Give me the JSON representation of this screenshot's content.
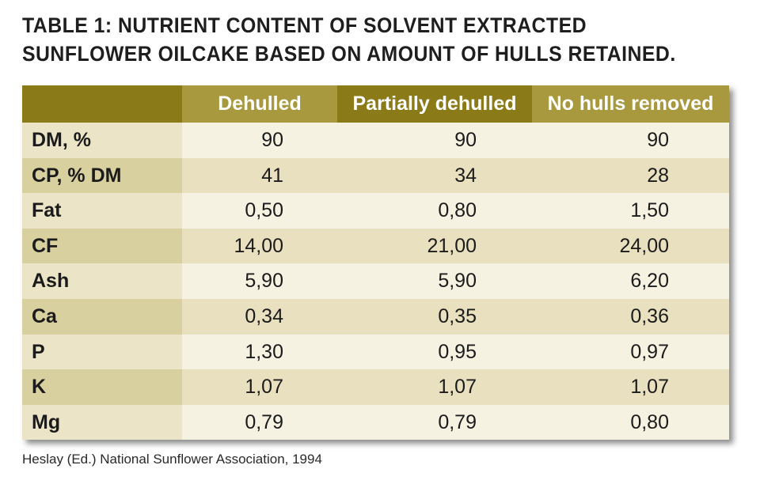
{
  "title": "TABLE 1: NUTRIENT CONTENT OF SOLVENT EXTRACTED SUNFLOWER OILCAKE BASED ON AMOUNT OF HULLS RETAINED.",
  "table": {
    "columns": [
      "",
      "Dehulled",
      "Partially dehulled",
      "No hulls removed"
    ],
    "rows": [
      {
        "label": "DM, %",
        "values": [
          "90",
          "90",
          "90"
        ]
      },
      {
        "label": "CP, % DM",
        "values": [
          "41",
          "34",
          "28"
        ]
      },
      {
        "label": "Fat",
        "values": [
          "0,50",
          "0,80",
          "1,50"
        ]
      },
      {
        "label": "CF",
        "values": [
          "14,00",
          "21,00",
          "24,00"
        ]
      },
      {
        "label": "Ash",
        "values": [
          "5,90",
          "5,90",
          "6,20"
        ]
      },
      {
        "label": "Ca",
        "values": [
          "0,34",
          "0,35",
          "0,36"
        ]
      },
      {
        "label": "P",
        "values": [
          "1,30",
          "0,95",
          "0,97"
        ]
      },
      {
        "label": "K",
        "values": [
          "1,07",
          "1,07",
          "1,07"
        ]
      },
      {
        "label": "Mg",
        "values": [
          "0,79",
          "0,79",
          "0,80"
        ]
      }
    ]
  },
  "source": "Heslay (Ed.) National Sunflower Association, 1994",
  "colors": {
    "header_dark": "#8a7a18",
    "header_light": "#a8993e",
    "label_dark": "#d9d0a0",
    "label_light": "#ebe4c6",
    "body_dark": "#e8e0bf",
    "body_light": "#f6f2e1"
  }
}
